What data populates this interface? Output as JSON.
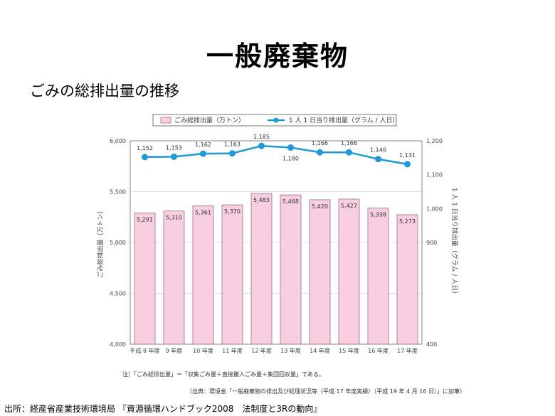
{
  "page": {
    "title": "一般廃棄物",
    "subtitle": "ごみの総排出量の推移",
    "note1": "注）「ごみ総排出量」＝「収集ごみ量＋直接搬入ごみ量＋集団回収量」である。",
    "note2": "（出典：環境省「一般廃棄物の排出及び処理状況等（平成 17 年度実績）（平成 19 年 4 月 16 日）」に加筆）",
    "credit": "出所：経産省産業技術環境局 『資源循環ハンドブック2008　法制度と3Rの動向』"
  },
  "chart_data": {
    "type": "bar+line",
    "categories": [
      "平成 8 年度",
      "9 年度",
      "10 年度",
      "11 年度",
      "12 年度",
      "13 年度",
      "14 年度",
      "15 年度",
      "16 年度",
      "17 年度"
    ],
    "series": [
      {
        "name": "ごみ総排出量（万トン）",
        "type": "bar",
        "axis": "left",
        "values": [
          5291,
          5310,
          5361,
          5370,
          5483,
          5468,
          5420,
          5427,
          5338,
          5273
        ],
        "labels": [
          "5,291",
          "5,310",
          "5,361",
          "5,370",
          "5,483",
          "5,468",
          "5,420",
          "5,427",
          "5,338",
          "5,273"
        ],
        "color": "#f7cfe0"
      },
      {
        "name": "1 人 1 日当り排出量（グラム / 人日）",
        "type": "line",
        "axis": "right",
        "values": [
          1152,
          1153,
          1162,
          1163,
          1185,
          1180,
          1166,
          1166,
          1146,
          1131
        ],
        "labels": [
          "1,152",
          "1,153",
          "1,162",
          "1,163",
          "1,185",
          "1,180",
          "1,166",
          "1,166",
          "1,146",
          "1,131"
        ],
        "color": "#1f9ad6"
      }
    ],
    "left_axis": {
      "label": "ごみ総排出量（万トン）",
      "ticks": [
        4000,
        4500,
        5000,
        5500,
        6000
      ],
      "tick_labels": [
        "4,000",
        "4,500",
        "5,000",
        "5,500",
        "6,000"
      ],
      "range": [
        4000,
        6000
      ]
    },
    "right_axis": {
      "label": "1 人 1 日当り排出量（グラム / 人日）",
      "tick_labels": [
        "400",
        "900",
        "1,000",
        "1,100",
        "1,200"
      ],
      "segments": [
        [
          400,
          900
        ],
        [
          900,
          1200
        ]
      ]
    },
    "legend_position": "top"
  }
}
